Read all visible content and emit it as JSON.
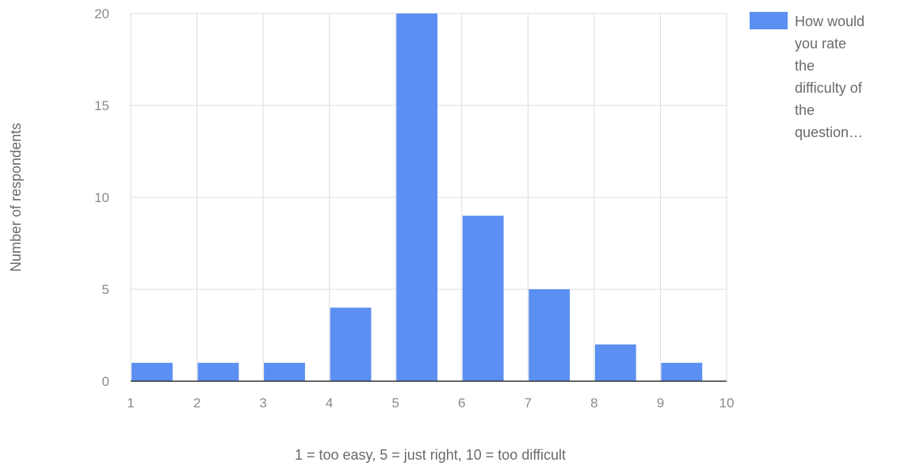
{
  "chart_data": {
    "type": "bar",
    "title": "",
    "xlabel": "1 = too easy, 5 = just right, 10 = too difficult",
    "ylabel": "Number of respondents",
    "x_ticks": [
      "1",
      "2",
      "3",
      "4",
      "5",
      "6",
      "7",
      "8",
      "9",
      "10"
    ],
    "y_ticks": [
      "0",
      "5",
      "10",
      "15",
      "20"
    ],
    "xlim": [
      1,
      10
    ],
    "ylim": [
      0,
      20
    ],
    "grid": true,
    "legend_position": "right",
    "bars": [
      {
        "x_start": 1,
        "x_end": 2,
        "value": 1
      },
      {
        "x_start": 2,
        "x_end": 3,
        "value": 1
      },
      {
        "x_start": 3,
        "x_end": 4,
        "value": 1
      },
      {
        "x_start": 4,
        "x_end": 5,
        "value": 4
      },
      {
        "x_start": 5,
        "x_end": 6,
        "value": 20
      },
      {
        "x_start": 6,
        "x_end": 7,
        "value": 9
      },
      {
        "x_start": 7,
        "x_end": 8,
        "value": 5
      },
      {
        "x_start": 8,
        "x_end": 9,
        "value": 2
      },
      {
        "x_start": 9,
        "x_end": 10,
        "value": 1
      }
    ],
    "series": [
      {
        "name_lines": [
          "How would",
          "you rate",
          "the",
          "difficulty of",
          "the",
          "question…"
        ],
        "color": "#5b8ff2"
      }
    ]
  }
}
